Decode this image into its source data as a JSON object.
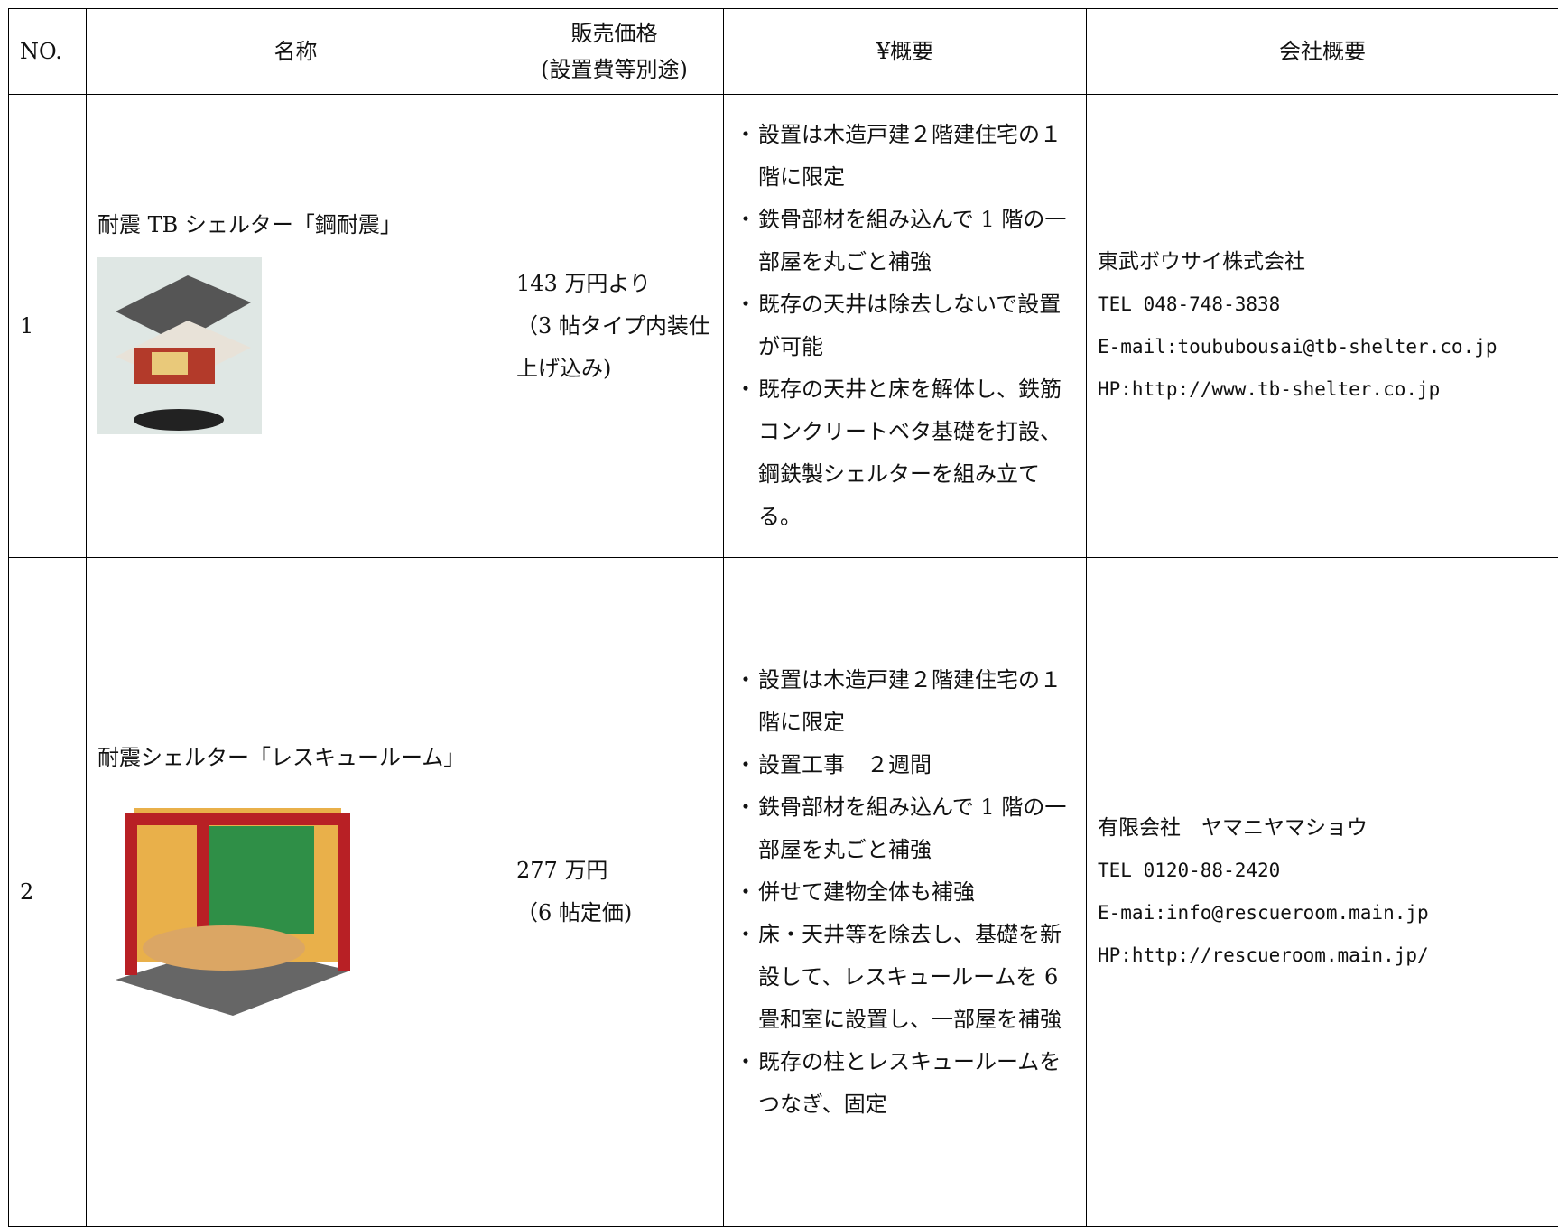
{
  "table": {
    "header": [
      "NO.",
      "名称",
      [
        "販売価格",
        "(設置費等別途)"
      ],
      "¥概要",
      "会社概要"
    ],
    "rows": [
      {
        "no": "1",
        "name": "耐震 TB シェルター「鋼耐震」",
        "price": [
          "143 万円より",
          "（3 帖タイプ内装仕上げ込み)"
        ],
        "summary": [
          "設置は木造戸建２階建住宅の１階に限定",
          "鉄骨部材を組み込んで 1 階の一部屋を丸ごと補強",
          "既存の天井は除去しないで設置が可能",
          "既存の天井と床を解体し、鉄筋コンクリートベタ基礎を打設、鋼鉄製シェルターを組み立てる。"
        ],
        "company": [
          "東武ボウサイ株式会社",
          "TEL 048-748-3838",
          "E-mail:toububousai@tb-shelter.co.jp",
          "HP:http://www.tb-shelter.co.jp"
        ]
      },
      {
        "no": "2",
        "name": "耐震シェルター「レスキュールーム」",
        "price": [
          "277 万円",
          "（6 帖定価)"
        ],
        "summary": [
          "設置は木造戸建２階建住宅の１階に限定",
          "設置工事　２週間",
          "鉄骨部材を組み込んで 1 階の一部屋を丸ごと補強",
          "併せて建物全体も補強",
          "床・天井等を除去し、基礎を新設して、レスキュールームを 6 畳和室に設置し、一部屋を補強",
          "既存の柱とレスキュールームをつなぎ、固定"
        ],
        "company": [
          "有限会社　ヤマニヤマショウ",
          "TEL 0120-88-2420",
          "E-mai:info@rescueroom.main.jp",
          "HP:http://rescueroom.main.jp/"
        ]
      }
    ]
  }
}
